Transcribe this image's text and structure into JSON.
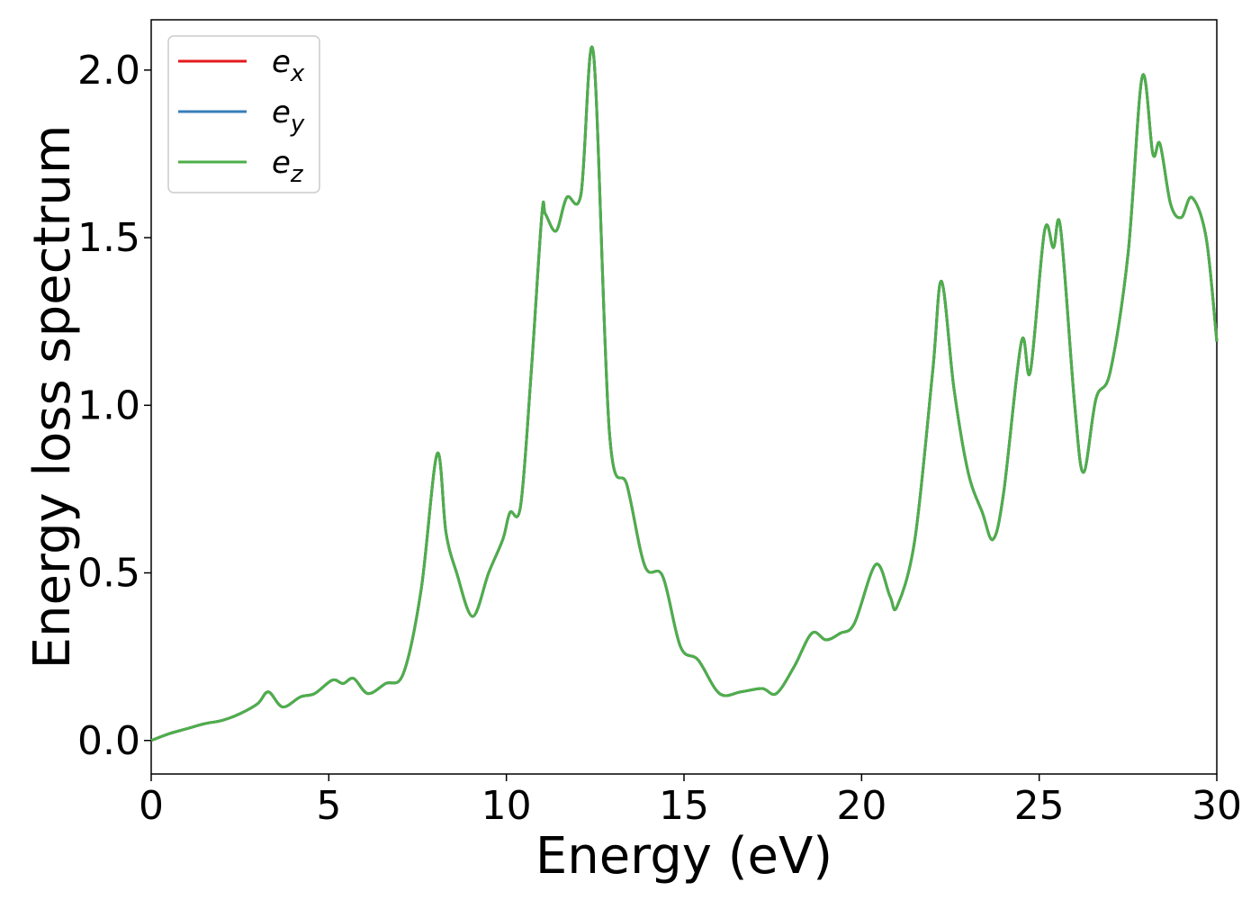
{
  "chart_data": {
    "type": "line",
    "title": "",
    "xlabel": "Energy (eV)",
    "ylabel": "Energy loss spectrum",
    "xlim": [
      0,
      30
    ],
    "ylim": [
      -0.1,
      2.15
    ],
    "xticks": [
      0,
      5,
      10,
      15,
      20,
      25,
      30
    ],
    "xtick_labels": [
      "0",
      "5",
      "10",
      "15",
      "20",
      "25",
      "30"
    ],
    "yticks": [
      0.0,
      0.5,
      1.0,
      1.5,
      2.0
    ],
    "ytick_labels": [
      "0.0",
      "0.5",
      "1.0",
      "1.5",
      "2.0"
    ],
    "grid": false,
    "legend_position": "top-left",
    "x": [
      0,
      0.5,
      1.0,
      1.5,
      2.0,
      2.5,
      3.0,
      3.3,
      3.7,
      4.2,
      4.6,
      5.1,
      5.4,
      5.7,
      6.1,
      6.6,
      7.1,
      7.6,
      8.05,
      8.3,
      8.6,
      9.05,
      9.5,
      9.9,
      10.1,
      10.4,
      10.7,
      11.0,
      11.1,
      11.4,
      11.7,
      12.1,
      12.45,
      12.9,
      13.4,
      13.9,
      14.4,
      14.9,
      15.4,
      16.0,
      16.6,
      17.2,
      17.6,
      18.1,
      18.6,
      19.0,
      19.4,
      19.8,
      20.4,
      20.8,
      21.0,
      21.5,
      22.0,
      22.25,
      22.6,
      23.0,
      23.4,
      23.7,
      24.0,
      24.5,
      24.75,
      25.15,
      25.4,
      25.6,
      26.0,
      26.25,
      26.6,
      27.0,
      27.5,
      27.9,
      28.2,
      28.4,
      28.7,
      29.0,
      29.3,
      29.7,
      30.0
    ],
    "series": [
      {
        "name": "e_x",
        "color": "#e41a1c",
        "values": [
          0.0,
          0.02,
          0.035,
          0.05,
          0.06,
          0.08,
          0.11,
          0.145,
          0.1,
          0.13,
          0.14,
          0.18,
          0.17,
          0.185,
          0.14,
          0.17,
          0.2,
          0.45,
          0.855,
          0.62,
          0.5,
          0.37,
          0.5,
          0.6,
          0.68,
          0.7,
          1.1,
          1.57,
          1.57,
          1.52,
          1.62,
          1.63,
          2.05,
          0.92,
          0.76,
          0.52,
          0.49,
          0.28,
          0.24,
          0.14,
          0.145,
          0.155,
          0.14,
          0.22,
          0.32,
          0.3,
          0.32,
          0.35,
          0.525,
          0.43,
          0.4,
          0.6,
          1.1,
          1.37,
          1.05,
          0.8,
          0.68,
          0.6,
          0.74,
          1.19,
          1.1,
          1.52,
          1.47,
          1.53,
          1.0,
          0.8,
          1.02,
          1.1,
          1.45,
          1.98,
          1.75,
          1.78,
          1.6,
          1.56,
          1.62,
          1.5,
          1.19
        ]
      },
      {
        "name": "e_y",
        "color": "#377eb8",
        "values": [
          0.0,
          0.02,
          0.035,
          0.05,
          0.06,
          0.08,
          0.11,
          0.145,
          0.1,
          0.13,
          0.14,
          0.18,
          0.17,
          0.185,
          0.14,
          0.17,
          0.2,
          0.45,
          0.855,
          0.62,
          0.5,
          0.37,
          0.5,
          0.6,
          0.68,
          0.7,
          1.1,
          1.57,
          1.57,
          1.52,
          1.62,
          1.63,
          2.05,
          0.92,
          0.76,
          0.52,
          0.49,
          0.28,
          0.24,
          0.14,
          0.145,
          0.155,
          0.14,
          0.22,
          0.32,
          0.3,
          0.32,
          0.35,
          0.525,
          0.43,
          0.4,
          0.6,
          1.1,
          1.37,
          1.05,
          0.8,
          0.68,
          0.6,
          0.74,
          1.19,
          1.1,
          1.52,
          1.47,
          1.53,
          1.0,
          0.8,
          1.02,
          1.1,
          1.45,
          1.98,
          1.75,
          1.78,
          1.6,
          1.56,
          1.62,
          1.5,
          1.19
        ]
      },
      {
        "name": "e_z",
        "color": "#4daf4a",
        "values": [
          0.0,
          0.02,
          0.035,
          0.05,
          0.06,
          0.08,
          0.11,
          0.145,
          0.1,
          0.13,
          0.14,
          0.18,
          0.17,
          0.185,
          0.14,
          0.17,
          0.2,
          0.45,
          0.855,
          0.62,
          0.5,
          0.37,
          0.5,
          0.6,
          0.68,
          0.7,
          1.1,
          1.57,
          1.57,
          1.52,
          1.62,
          1.63,
          2.05,
          0.92,
          0.76,
          0.52,
          0.49,
          0.28,
          0.24,
          0.14,
          0.145,
          0.155,
          0.14,
          0.22,
          0.32,
          0.3,
          0.32,
          0.35,
          0.525,
          0.43,
          0.4,
          0.6,
          1.1,
          1.37,
          1.05,
          0.8,
          0.68,
          0.6,
          0.74,
          1.19,
          1.1,
          1.52,
          1.47,
          1.53,
          1.0,
          0.8,
          1.02,
          1.1,
          1.45,
          1.98,
          1.75,
          1.78,
          1.6,
          1.56,
          1.62,
          1.5,
          1.19
        ]
      }
    ],
    "legend": [
      {
        "base": "e",
        "sub": "x",
        "color": "#e41a1c"
      },
      {
        "base": "e",
        "sub": "y",
        "color": "#377eb8"
      },
      {
        "base": "e",
        "sub": "z",
        "color": "#4daf4a"
      }
    ]
  }
}
